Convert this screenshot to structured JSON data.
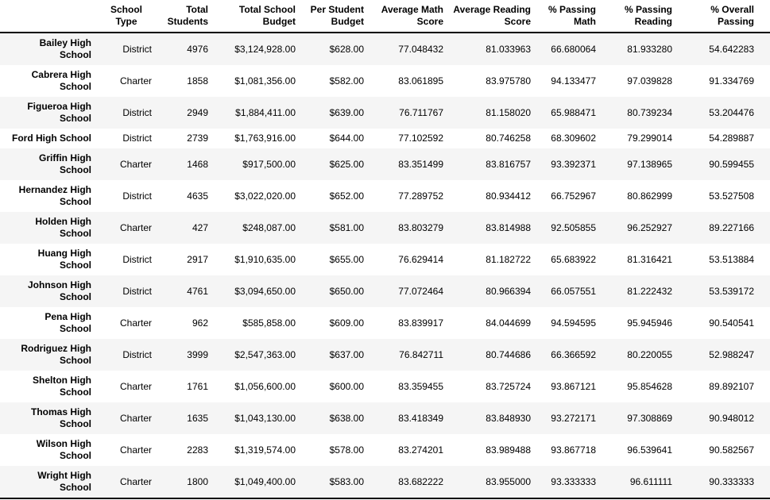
{
  "style": {
    "stripe_color": "#f5f5f5",
    "rule_color": "#000000",
    "text_color": "#000000"
  },
  "table": {
    "index_header": "",
    "columns": [
      {
        "id": "school-type",
        "label": "School\nType",
        "align": "center"
      },
      {
        "id": "total-students",
        "label": "Total\nStudents",
        "align": "right"
      },
      {
        "id": "total-school-budget",
        "label": "Total School\nBudget",
        "align": "right"
      },
      {
        "id": "per-student-budget",
        "label": "Per Student\nBudget",
        "align": "right"
      },
      {
        "id": "average-math-score",
        "label": "Average Math\nScore",
        "align": "right"
      },
      {
        "id": "average-reading-score",
        "label": "Average Reading\nScore",
        "align": "right"
      },
      {
        "id": "pct-passing-math",
        "label": "% Passing\nMath",
        "align": "right"
      },
      {
        "id": "pct-passing-reading",
        "label": "% Passing\nReading",
        "align": "right"
      },
      {
        "id": "pct-overall-passing",
        "label": "% Overall\nPassing",
        "align": "right"
      }
    ],
    "rows": [
      {
        "school": "Bailey High\nSchool",
        "cells": [
          "District",
          "4976",
          "$3,124,928.00",
          "$628.00",
          "77.048432",
          "81.033963",
          "66.680064",
          "81.933280",
          "54.642283"
        ]
      },
      {
        "school": "Cabrera High\nSchool",
        "cells": [
          "Charter",
          "1858",
          "$1,081,356.00",
          "$582.00",
          "83.061895",
          "83.975780",
          "94.133477",
          "97.039828",
          "91.334769"
        ]
      },
      {
        "school": "Figueroa High\nSchool",
        "cells": [
          "District",
          "2949",
          "$1,884,411.00",
          "$639.00",
          "76.711767",
          "81.158020",
          "65.988471",
          "80.739234",
          "53.204476"
        ]
      },
      {
        "school": "Ford High School",
        "cells": [
          "District",
          "2739",
          "$1,763,916.00",
          "$644.00",
          "77.102592",
          "80.746258",
          "68.309602",
          "79.299014",
          "54.289887"
        ]
      },
      {
        "school": "Griffin High\nSchool",
        "cells": [
          "Charter",
          "1468",
          "$917,500.00",
          "$625.00",
          "83.351499",
          "83.816757",
          "93.392371",
          "97.138965",
          "90.599455"
        ]
      },
      {
        "school": "Hernandez High\nSchool",
        "cells": [
          "District",
          "4635",
          "$3,022,020.00",
          "$652.00",
          "77.289752",
          "80.934412",
          "66.752967",
          "80.862999",
          "53.527508"
        ]
      },
      {
        "school": "Holden High\nSchool",
        "cells": [
          "Charter",
          "427",
          "$248,087.00",
          "$581.00",
          "83.803279",
          "83.814988",
          "92.505855",
          "96.252927",
          "89.227166"
        ]
      },
      {
        "school": "Huang High\nSchool",
        "cells": [
          "District",
          "2917",
          "$1,910,635.00",
          "$655.00",
          "76.629414",
          "81.182722",
          "65.683922",
          "81.316421",
          "53.513884"
        ]
      },
      {
        "school": "Johnson High\nSchool",
        "cells": [
          "District",
          "4761",
          "$3,094,650.00",
          "$650.00",
          "77.072464",
          "80.966394",
          "66.057551",
          "81.222432",
          "53.539172"
        ]
      },
      {
        "school": "Pena High\nSchool",
        "cells": [
          "Charter",
          "962",
          "$585,858.00",
          "$609.00",
          "83.839917",
          "84.044699",
          "94.594595",
          "95.945946",
          "90.540541"
        ]
      },
      {
        "school": "Rodriguez High\nSchool",
        "cells": [
          "District",
          "3999",
          "$2,547,363.00",
          "$637.00",
          "76.842711",
          "80.744686",
          "66.366592",
          "80.220055",
          "52.988247"
        ]
      },
      {
        "school": "Shelton High\nSchool",
        "cells": [
          "Charter",
          "1761",
          "$1,056,600.00",
          "$600.00",
          "83.359455",
          "83.725724",
          "93.867121",
          "95.854628",
          "89.892107"
        ]
      },
      {
        "school": "Thomas High\nSchool",
        "cells": [
          "Charter",
          "1635",
          "$1,043,130.00",
          "$638.00",
          "83.418349",
          "83.848930",
          "93.272171",
          "97.308869",
          "90.948012"
        ]
      },
      {
        "school": "Wilson High\nSchool",
        "cells": [
          "Charter",
          "2283",
          "$1,319,574.00",
          "$578.00",
          "83.274201",
          "83.989488",
          "93.867718",
          "96.539641",
          "90.582567"
        ]
      },
      {
        "school": "Wright High\nSchool",
        "cells": [
          "Charter",
          "1800",
          "$1,049,400.00",
          "$583.00",
          "83.682222",
          "83.955000",
          "93.333333",
          "96.611111",
          "90.333333"
        ]
      }
    ]
  }
}
